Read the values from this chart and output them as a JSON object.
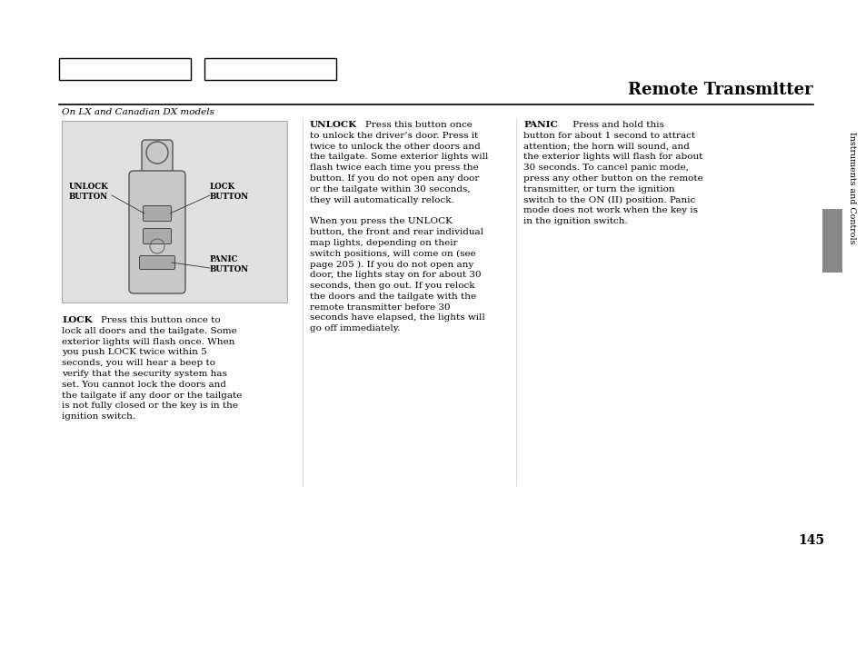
{
  "title": "Remote Transmitter",
  "page_num": "145",
  "sidebar_text": "Instruments and Controls",
  "italic_label": "On LX and Canadian DX models",
  "bg_color": "#ffffff",
  "text_color": "#000000",
  "sidebar_color": "#888888",
  "line_color": "#000000"
}
